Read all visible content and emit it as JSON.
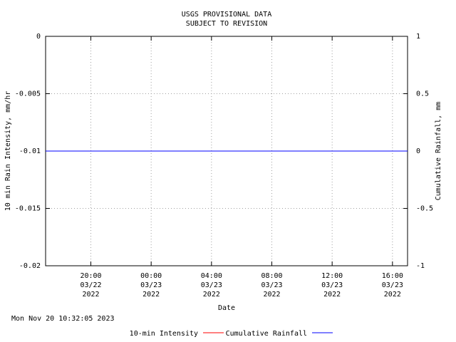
{
  "chart_data": {
    "type": "line",
    "title": "USGS PROVISIONAL DATA",
    "subtitle": "SUBJECT TO REVISION",
    "ylabel": "10 min Rain Intensity, mm/hr",
    "y2label": "Cumulative Rainfall, mm",
    "xlabel": "Date",
    "annotation": "Mon Nov 20 10:32:05 2023",
    "x": [
      "2022-03-22T17:00",
      "2022-03-23T17:00"
    ],
    "xlim": [
      "2022-03-22T17:00",
      "2022-03-23T17:00"
    ],
    "xticks": [
      {
        "value": "2022-03-22T20:00",
        "label": "20:00\n03/22\n2022"
      },
      {
        "value": "2022-03-23T00:00",
        "label": "00:00\n03/23\n2022"
      },
      {
        "value": "2022-03-23T04:00",
        "label": "04:00\n03/23\n2022"
      },
      {
        "value": "2022-03-23T08:00",
        "label": "08:00\n03/23\n2022"
      },
      {
        "value": "2022-03-23T12:00",
        "label": "12:00\n03/23\n2022"
      },
      {
        "value": "2022-03-23T16:00",
        "label": "16:00\n03/23\n2022"
      }
    ],
    "ylim": [
      -0.02,
      0
    ],
    "yticks": [
      0,
      -0.005,
      -0.01,
      -0.015,
      -0.02
    ],
    "y2lim": [
      -1,
      1
    ],
    "y2ticks": [
      1,
      0.5,
      0,
      -0.5,
      -1
    ],
    "grid": true,
    "legend": "bottom",
    "series": [
      {
        "name": "10-min Intensity",
        "color": "#ff0000",
        "values": [
          null,
          null
        ]
      },
      {
        "name": "Cumulative Rainfall",
        "color": "#0000ff",
        "values": [
          0,
          0
        ],
        "axis": "y2"
      }
    ]
  }
}
